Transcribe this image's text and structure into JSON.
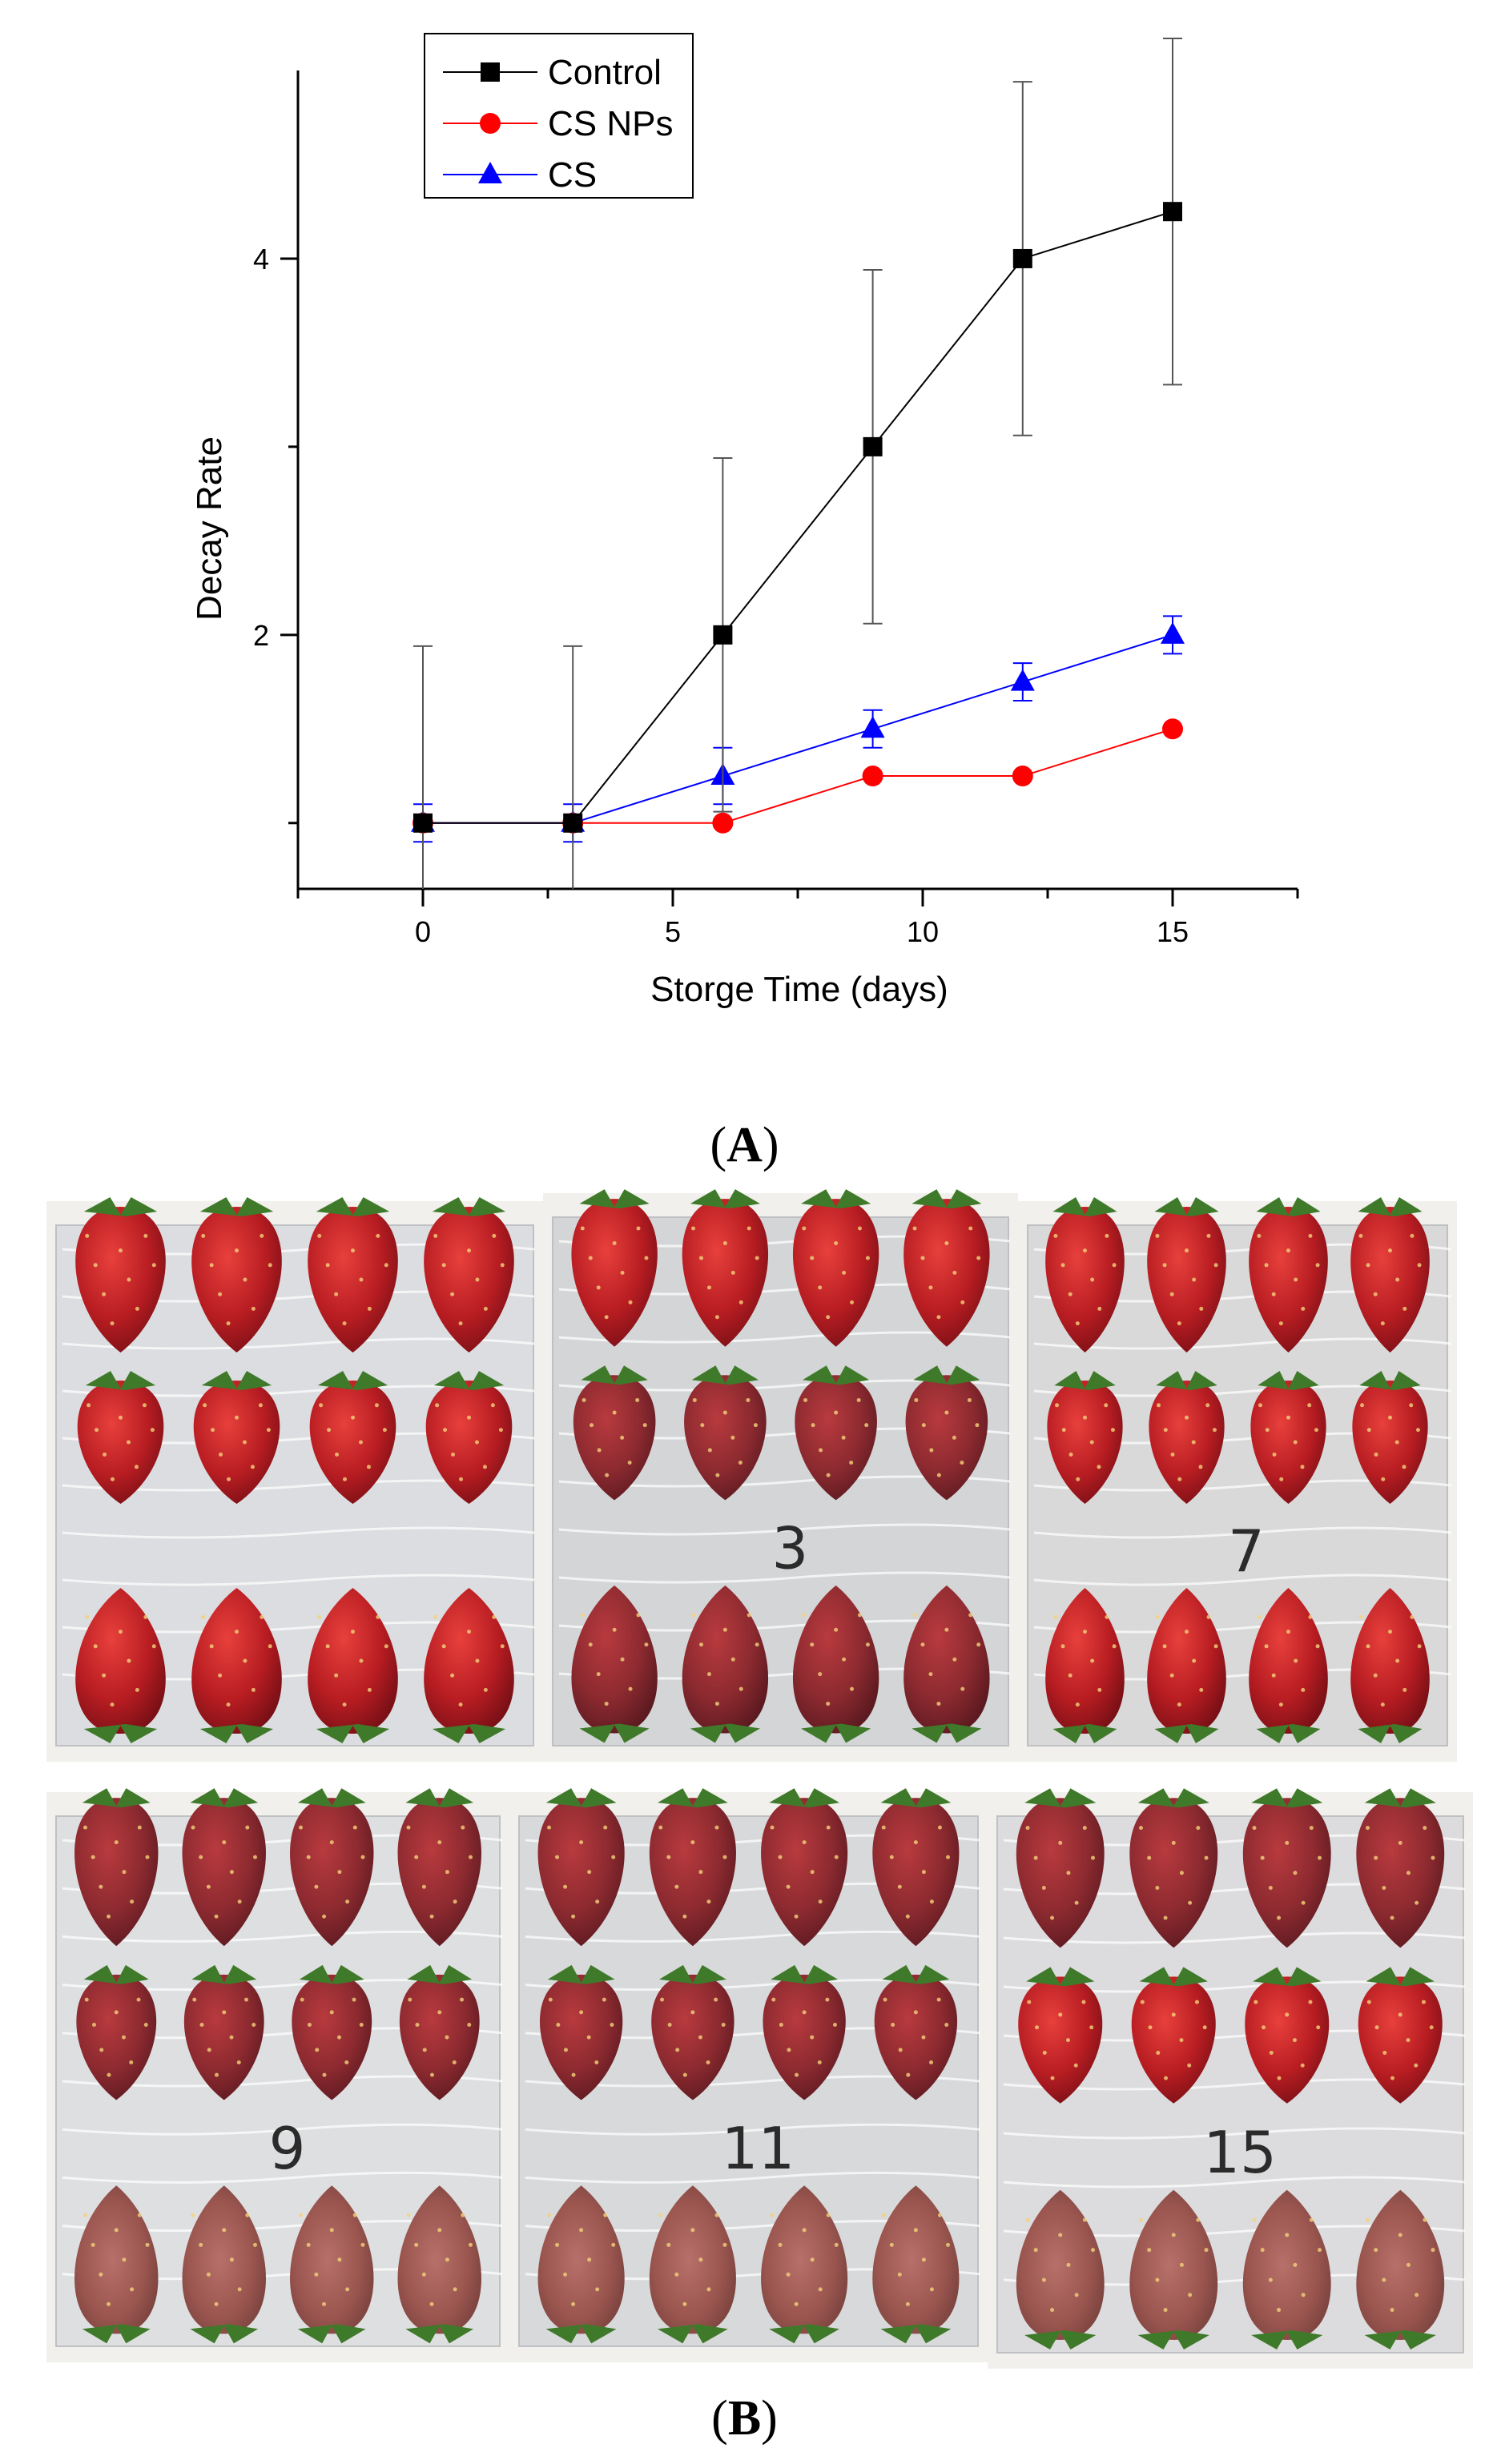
{
  "figure": {
    "panel_a_label_open": "(",
    "panel_a_label_letter": "A",
    "panel_a_label_close": ")",
    "panel_b_label_open": "(",
    "panel_b_label_letter": "B",
    "panel_b_label_close": ")"
  },
  "chart_data": {
    "type": "line",
    "title": "",
    "xlabel": "Storge Time (days)",
    "ylabel": "Decay Rate",
    "xlim": [
      -2.5,
      17.5
    ],
    "ylim": [
      0.65,
      5.0
    ],
    "xticks": [
      0,
      5,
      10,
      15
    ],
    "yticks": [
      2,
      4
    ],
    "grid": false,
    "legend_position": "top-left",
    "series": [
      {
        "name": "Control",
        "color": "#000000",
        "marker": "square",
        "x": [
          0,
          3,
          6,
          9,
          12,
          15
        ],
        "values": [
          1,
          1,
          2,
          3,
          4,
          4.25
        ],
        "error": [
          0.94,
          0.94,
          0.94,
          0.94,
          0.94,
          0.92
        ]
      },
      {
        "name": "CS NPs",
        "color": "#ff0000",
        "marker": "circle",
        "x": [
          0,
          3,
          6,
          9,
          12,
          15
        ],
        "values": [
          1,
          1,
          1,
          1.25,
          1.25,
          1.5
        ],
        "error": [
          0,
          0,
          0,
          0,
          0,
          0
        ]
      },
      {
        "name": "CS",
        "color": "#0000ff",
        "marker": "triangle",
        "x": [
          0,
          3,
          6,
          9,
          12,
          15
        ],
        "values": [
          1,
          1,
          1.25,
          1.5,
          1.75,
          2
        ],
        "error": [
          0.1,
          0.1,
          0.15,
          0.1,
          0.1,
          0.1
        ]
      }
    ]
  },
  "photos": [
    {
      "name": "photo-day-0",
      "day_label": "",
      "board": "#dcdde0"
    },
    {
      "name": "photo-day-3",
      "day_label": "3",
      "board": "#d4d5d7"
    },
    {
      "name": "photo-day-7",
      "day_label": "7",
      "board": "#d9d9da"
    },
    {
      "name": "photo-day-9",
      "day_label": "9",
      "board": "#dedfe1"
    },
    {
      "name": "photo-day-11",
      "day_label": "11",
      "board": "#d8d9db"
    },
    {
      "name": "photo-day-15",
      "day_label": "15",
      "board": "#dcdcde"
    }
  ]
}
